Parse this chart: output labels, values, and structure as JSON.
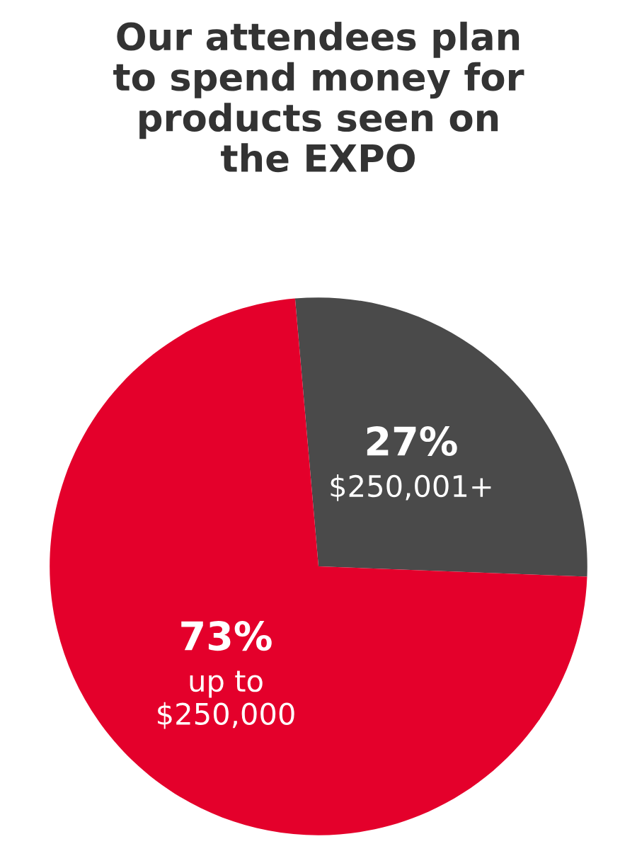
{
  "chart_data": {
    "type": "pie",
    "title": "Our attendees plan\nto spend money for\nproducts seen on\nthe EXPO",
    "categories": [
      "$250,001+",
      "up to\n$250,000"
    ],
    "values": [
      27,
      73
    ],
    "colors": [
      "#4a4a4a",
      "#e4002b"
    ],
    "value_labels": [
      "27%",
      "73%"
    ]
  }
}
